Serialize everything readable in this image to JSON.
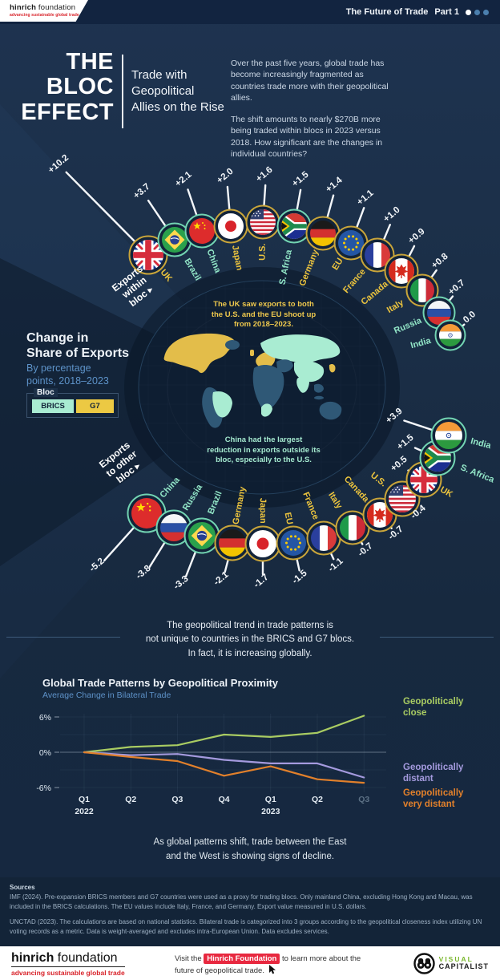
{
  "header": {
    "brand_bold": "hinrich",
    "brand_rest": " foundation",
    "brand_tagline": "advancing sustainable global trade",
    "series_title": "The Future of Trade",
    "part_label": "Part 1",
    "dot_colors": [
      "#ffffff",
      "#4b7fae",
      "#4b7fae"
    ]
  },
  "title": {
    "lines": [
      "THE",
      "BLOC",
      "EFFECT"
    ],
    "subtitle": "Trade with\nGeopolitical\nAllies on the Rise"
  },
  "intro": {
    "p1": "Over the past five years, global trade has become increasingly fragmented as countries trade more with their geopolitical allies.",
    "p2": "The shift amounts to nearly $270B more being traded within blocs in 2023 versus 2018. How significant are the changes in individual countries?"
  },
  "left_panel": {
    "heading": "Change in\nShare of Exports",
    "subheading": "By percentage\npoints, 2018–2023",
    "legend_title": "Bloc",
    "legend": [
      {
        "label": "BRICS",
        "color": "#a9ecd2"
      },
      {
        "label": "G7",
        "color": "#ecc943"
      }
    ]
  },
  "arc_labels": {
    "within": "Exports\nwithin\nbloc ▸",
    "other": "Exports\nto other\nbloc ▸"
  },
  "map_annotations": {
    "top": "The UK saw exports to both the U.S. and the EU shoot up from 2018–2023.",
    "top_color": "#eec84d",
    "bottom": "China had the largest reduction in exports outside its bloc, especially to the U.S.",
    "bottom_color": "#a5ead0"
  },
  "blocs": {
    "G7": {
      "ring": "#c9a53a",
      "label": "#ecc43e"
    },
    "BRICS": {
      "ring": "#72d4b2",
      "label": "#93e7c8"
    }
  },
  "arcs": {
    "within_bloc": [
      {
        "country": "UK",
        "value": "+10.2",
        "bloc": "G7",
        "flag": "uk"
      },
      {
        "country": "Brazil",
        "value": "+3.7",
        "bloc": "BRICS",
        "flag": "br"
      },
      {
        "country": "China",
        "value": "+2.1",
        "bloc": "BRICS",
        "flag": "cn"
      },
      {
        "country": "Japan",
        "value": "+2.0",
        "bloc": "G7",
        "flag": "jp"
      },
      {
        "country": "U.S.",
        "value": "+1.6",
        "bloc": "G7",
        "flag": "us"
      },
      {
        "country": "S. Africa",
        "value": "+1.5",
        "bloc": "BRICS",
        "flag": "za"
      },
      {
        "country": "Germany",
        "value": "+1.4",
        "bloc": "G7",
        "flag": "de"
      },
      {
        "country": "EU",
        "value": "+1.1",
        "bloc": "G7",
        "flag": "eu"
      },
      {
        "country": "France",
        "value": "+1.0",
        "bloc": "G7",
        "flag": "fr"
      },
      {
        "country": "Canada",
        "value": "+0.9",
        "bloc": "G7",
        "flag": "ca"
      },
      {
        "country": "Italy",
        "value": "+0.8",
        "bloc": "G7",
        "flag": "it"
      },
      {
        "country": "Russia",
        "value": "+0.7",
        "bloc": "BRICS",
        "flag": "ru"
      },
      {
        "country": "India",
        "value": "0.0",
        "bloc": "BRICS",
        "flag": "in"
      }
    ],
    "other_bloc": [
      {
        "country": "China",
        "value": "-5.2",
        "bloc": "BRICS",
        "flag": "cn"
      },
      {
        "country": "Russia",
        "value": "-3.8",
        "bloc": "BRICS",
        "flag": "ru"
      },
      {
        "country": "Brazil",
        "value": "-3.3",
        "bloc": "BRICS",
        "flag": "br"
      },
      {
        "country": "Germany",
        "value": "-2.1",
        "bloc": "G7",
        "flag": "de"
      },
      {
        "country": "Japan",
        "value": "-1.7",
        "bloc": "G7",
        "flag": "jp"
      },
      {
        "country": "EU",
        "value": "-1.5",
        "bloc": "G7",
        "flag": "eu"
      },
      {
        "country": "France",
        "value": "-1.1",
        "bloc": "G7",
        "flag": "fr"
      },
      {
        "country": "Italy",
        "value": "-0.7",
        "bloc": "G7",
        "flag": "it"
      },
      {
        "country": "Canada",
        "value": "-0.7",
        "bloc": "G7",
        "flag": "ca"
      },
      {
        "country": "U.S.",
        "value": "-0.4",
        "bloc": "G7",
        "flag": "us"
      },
      {
        "country": "UK",
        "value": "+0.5",
        "bloc": "G7",
        "flag": "uk"
      },
      {
        "country": "S. Africa",
        "value": "+1.5",
        "bloc": "BRICS",
        "flag": "za"
      },
      {
        "country": "India",
        "value": "+3.9",
        "bloc": "BRICS",
        "flag": "in"
      }
    ]
  },
  "middle_note": "The geopolitical trend in trade patterns is\nnot unique to countries in the BRICS and G7 blocs.\nIn fact, it is increasing globally.",
  "chart_data": {
    "type": "line",
    "title": "Global Trade Patterns by Geopolitical Proximity",
    "subtitle": "Average Change in Bilateral Trade",
    "x": [
      "Q1 2022",
      "Q2",
      "Q3",
      "Q4",
      "Q1 2023",
      "Q2",
      "Q3"
    ],
    "x_muted_last": true,
    "ylim": [
      -6,
      6
    ],
    "yticks": [
      {
        "v": 6,
        "t": "6%"
      },
      {
        "v": 0,
        "t": "0%"
      },
      {
        "v": -6,
        "t": "-6%"
      }
    ],
    "grid": true,
    "legend_position": "right",
    "series": [
      {
        "name": "Geopolitically close",
        "color": "#a9cc62",
        "values": [
          0,
          0.9,
          1.2,
          3.0,
          2.6,
          3.3,
          6.2
        ]
      },
      {
        "name": "Geopolitically distant",
        "color": "#a49ade",
        "values": [
          0,
          -0.5,
          -0.3,
          -1.3,
          -1.9,
          -1.9,
          -4.3
        ]
      },
      {
        "name": "Geopolitically very distant",
        "color": "#e2802b",
        "values": [
          0,
          -0.8,
          -1.5,
          -4.0,
          -2.4,
          -4.6,
          -5.2
        ]
      }
    ]
  },
  "conclusion": "As global patterns shift, trade between the East\nand the West is showing signs of decline.",
  "sources": {
    "heading": "Sources",
    "items": [
      "IMF (2024). Pre-expansion BRICS members and G7 countries were used as a proxy for trading blocs. Only mainland China, excluding Hong Kong and Macau, was included in the BRICS calculations. The EU values include Italy, France, and Germany. Export value measured in U.S. dollars.",
      "UNCTAD (2023). The calculations are based on national statistics. Bilateral trade is categorized into 3 groups according to the geopolitical closeness index utilizing UN voting records as a metric. Data is weight-averaged and excludes intra-European Union. Data excludes services."
    ]
  },
  "footer": {
    "brand_bold": "hinrich",
    "brand_rest": " foundation",
    "tagline": "advancing sustainable global trade",
    "cta_prefix": "Visit the ",
    "cta_badge": "Hinrich Foundation",
    "cta_suffix": " to learn more about the future of geopolitical trade.",
    "logo_word1": "VISUAL",
    "logo_word2": "CAPITALIST"
  }
}
